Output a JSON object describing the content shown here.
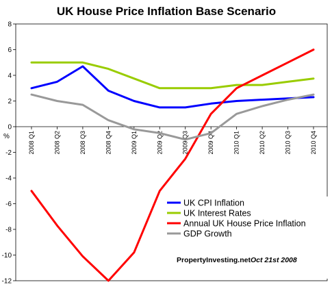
{
  "chart_data": {
    "type": "line",
    "title": "UK House Price Inflation Base Scenario",
    "ylabel": "%",
    "xlabel": "",
    "ylim": [
      -12,
      8
    ],
    "yticks": [
      8,
      6,
      4,
      2,
      0,
      -2,
      -4,
      -6,
      -8,
      -10,
      -12
    ],
    "grid": false,
    "legend_position": "bottom-right",
    "categories": [
      "2008 Q1",
      "2008 Q2",
      "2008 Q3",
      "2008 Q4",
      "2009 Q1",
      "2009 Q2",
      "2009 Q3",
      "2009 Q4",
      "2010 Q1",
      "2010 Q2",
      "2010 Q3",
      "2010 Q4"
    ],
    "series": [
      {
        "name": "UK CPI Inflation",
        "color": "#0000ff",
        "values": [
          3.0,
          3.5,
          4.7,
          2.8,
          2.0,
          1.5,
          1.5,
          1.8,
          2.0,
          2.1,
          2.2,
          2.3
        ]
      },
      {
        "name": "UK Interest Rates",
        "color": "#99cc00",
        "values": [
          5.0,
          5.0,
          5.0,
          4.5,
          3.75,
          3.0,
          3.0,
          3.0,
          3.25,
          3.25,
          3.5,
          3.75
        ]
      },
      {
        "name": "Annual UK House Price Inflation",
        "color": "#ff0000",
        "values": [
          -5.0,
          -7.7,
          -10.1,
          -12.0,
          -9.8,
          -5.0,
          -2.5,
          1.0,
          3.0,
          4.0,
          5.0,
          6.0
        ]
      },
      {
        "name": "GDP Growth",
        "color": "#999999",
        "values": [
          2.5,
          2.0,
          1.7,
          0.5,
          -0.2,
          -0.5,
          -1.0,
          -0.5,
          1.0,
          1.6,
          2.1,
          2.5
        ]
      }
    ],
    "annotation": {
      "credit": "PropertyInvesting.net",
      "date": "Oct 21st  2008"
    }
  }
}
